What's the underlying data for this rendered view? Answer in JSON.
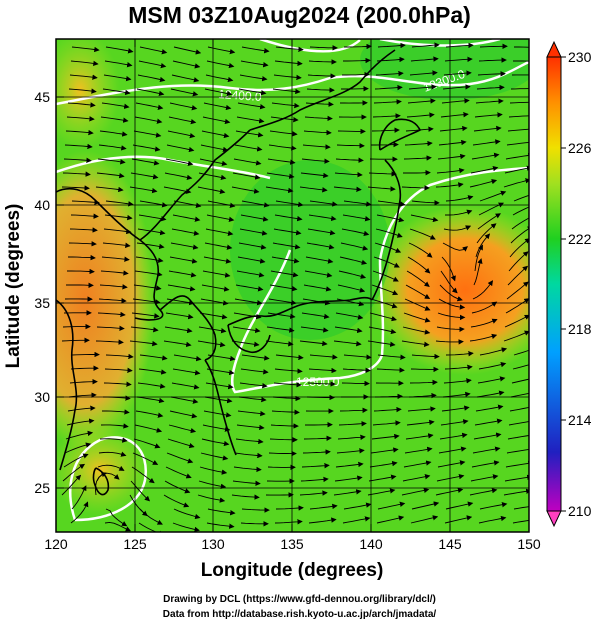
{
  "title": "MSM 03Z10Aug2024 (200.0hPa)",
  "x_axis": {
    "label": "Longitude (degrees)",
    "ticks": [
      120,
      125,
      130,
      135,
      140,
      145,
      150
    ]
  },
  "y_axis": {
    "label": "Latitude  (degrees)",
    "ticks": [
      25,
      30,
      35,
      40,
      45
    ]
  },
  "map": {
    "lon_range": [
      120,
      150
    ],
    "lat_range": [
      22.4,
      47.6
    ]
  },
  "colorbar": {
    "ticks": [
      210,
      214,
      218,
      222,
      226,
      230
    ],
    "range": [
      210,
      230
    ],
    "colors": [
      "#c000c0",
      "#2020c0",
      "#00a0ff",
      "#00d8a0",
      "#20d020",
      "#a0e020",
      "#f0e000",
      "#ff9000",
      "#ff3000"
    ]
  },
  "contours": [
    {
      "label": "12400.0"
    },
    {
      "label": "12500.0"
    },
    {
      "label": "12300.0"
    }
  ],
  "footer": {
    "line1": "Drawing by DCL (https://www.gfd-dennou.org/library/dcl/)",
    "line2": "Data from http://database.rish.kyoto-u.ac.jp/arch/jmadata/"
  }
}
